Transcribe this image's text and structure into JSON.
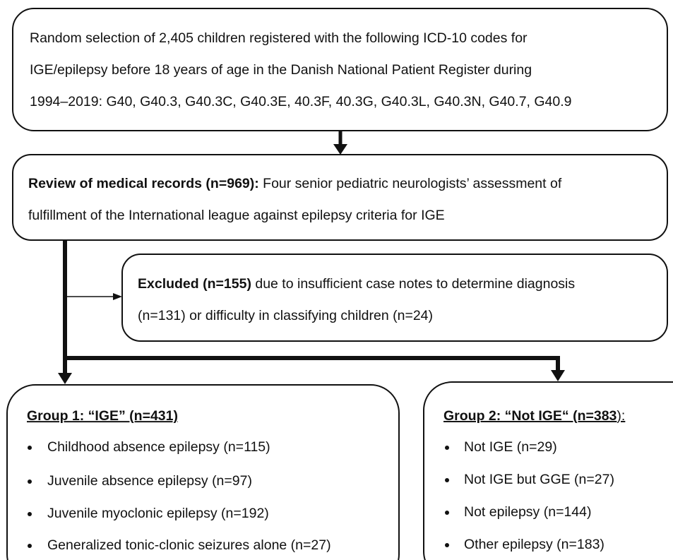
{
  "nodes": [
    {
      "lines": [
        "Random selection of 2,405 children registered with the following ICD-10 codes for",
        "IGE/epilepsy before 18 years of age in the Danish National Patient Register during",
        "1994–2019: G40, G40.3, G40.3C, G40.3E, 40.3F, 40.3G, G40.3L, G40.3N, G40.7, G40.9"
      ]
    },
    {
      "heading": "Review of medical records (n=969):",
      "lines": [
        "Four senior pediatric neurologists’ assessment of",
        "fulfillment of the International league against epilepsy criteria for IGE"
      ]
    },
    {
      "heading": "Excluded (n=155)",
      "lines": [
        "due to insufficient case notes to determine diagnosis",
        "(n=131) or difficulty in classifying children (n=24)"
      ]
    },
    {
      "heading": "Group 1: “IGE” (n=431)",
      "items": [
        "Childhood absence epilepsy (n=115)",
        "Juvenile absence epilepsy (n=97)",
        "Juvenile myoclonic epilepsy (n=192)",
        "Generalized tonic-clonic seizures alone (n=27)"
      ]
    },
    {
      "heading": "Group 2: “Not IGE“ (n=383",
      "heading_suffix": "):",
      "items": [
        "Not IGE (n=29)",
        "Not IGE but GGE (n=27)",
        "Not epilepsy (n=144)",
        "Other epilepsy (n=183)"
      ]
    }
  ]
}
